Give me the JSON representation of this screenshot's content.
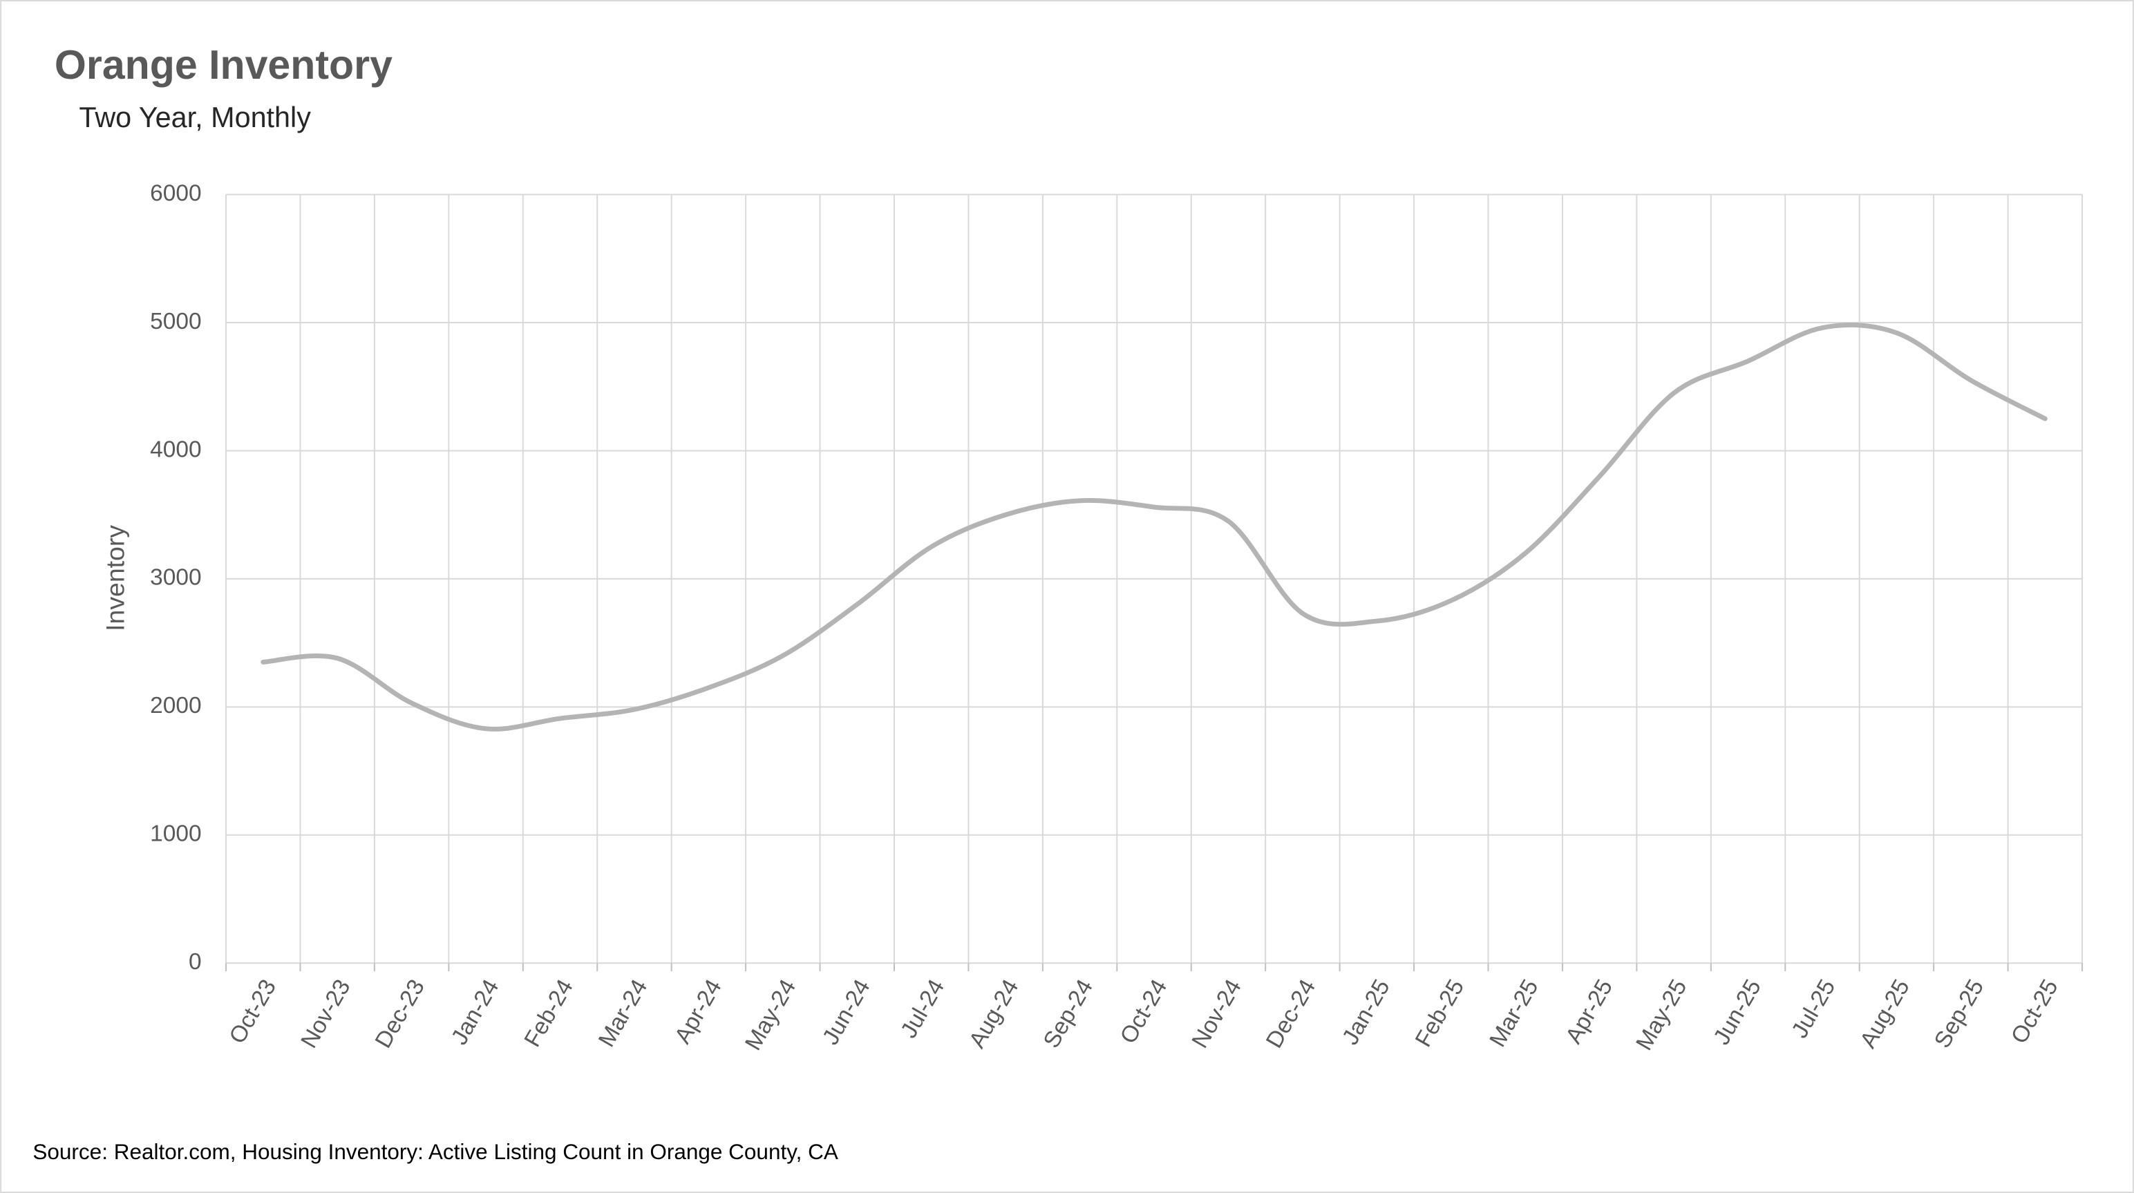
{
  "chart_data": {
    "type": "line",
    "title": "Orange Inventory",
    "subtitle": "Two Year, Monthly",
    "y_label": "Inventory",
    "source": "Source: Realtor.com, Housing Inventory: Active Listing Count in Orange County, CA",
    "categories": [
      "Oct-23",
      "Nov-23",
      "Dec-23",
      "Jan-24",
      "Feb-24",
      "Mar-24",
      "Apr-24",
      "May-24",
      "Jun-24",
      "Jul-24",
      "Aug-24",
      "Sep-24",
      "Oct-24",
      "Nov-24",
      "Dec-24",
      "Jan-25",
      "Feb-25",
      "Mar-25",
      "Apr-25",
      "May-25",
      "Jun-25",
      "Jul-25",
      "Aug-25",
      "Sep-25",
      "Oct-25"
    ],
    "series": [
      {
        "name": "Inventory",
        "color": "#b4b4b4",
        "values": [
          2350,
          2380,
          2030,
          1830,
          1910,
          1980,
          2150,
          2400,
          2800,
          3250,
          3500,
          3610,
          3560,
          3450,
          2730,
          2670,
          2830,
          3200,
          3800,
          4450,
          4700,
          4960,
          4920,
          4550,
          4250
        ]
      }
    ],
    "ylim": [
      0,
      6000
    ],
    "yticks": [
      0,
      1000,
      2000,
      3000,
      4000,
      5000,
      6000
    ],
    "grid": true,
    "smooth": true
  }
}
